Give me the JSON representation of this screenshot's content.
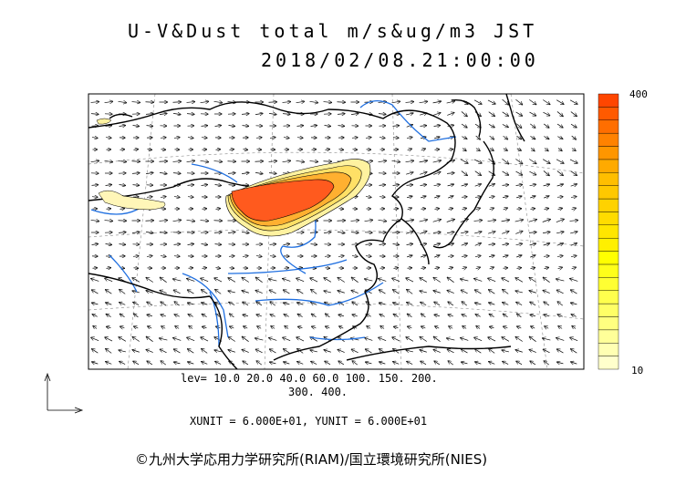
{
  "title": "U-V&Dust total m/s&ug/m3 JST",
  "datetime": "2018/02/08.21:00:00",
  "levels_line1": "lev= 10.0 20.0 40.0 60.0 100. 150. 200.",
  "levels_line2": "300. 400.",
  "units_text": "XUNIT = 6.000E+01, YUNIT = 6.000E+01",
  "credit": "©九州大学応用力学研究所(RIAM)/国立環境研究所(NIES)",
  "colorbar": {
    "max_label": "400",
    "min_label": "10",
    "colors": [
      "#ffffcc",
      "#ffffb3",
      "#ffff99",
      "#ffff80",
      "#ffff66",
      "#ffff4d",
      "#ffff33",
      "#ffff1a",
      "#ffff00",
      "#fff000",
      "#ffe600",
      "#ffdc00",
      "#ffd200",
      "#ffc800",
      "#ffbe00",
      "#ffaa00",
      "#ff9600",
      "#ff8200",
      "#ff6e00",
      "#ff5a00",
      "#ff4600"
    ]
  },
  "colors": {
    "coast": "#000000",
    "river": "#1f6fe0",
    "dust_core": "#ff5a1e",
    "dust_edge": "#fff2a0"
  }
}
